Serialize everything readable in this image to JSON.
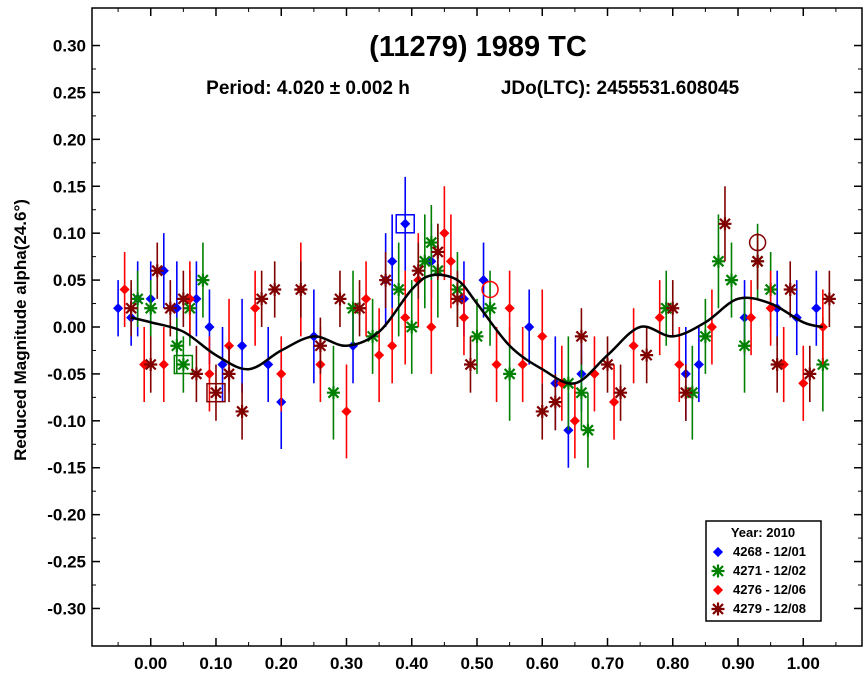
{
  "chart_data": {
    "type": "scatter",
    "title": "(11279) 1989 TC",
    "subtitle_period": "Period: 4.020 ± 0.002 h",
    "subtitle_epoch": "JDo(LTC): 2455531.608045",
    "ylabel": "Reduced Magnitude alpha(24.6°)",
    "xlabel": "",
    "xlim": [
      -0.09,
      1.09
    ],
    "ylim": [
      0.34,
      -0.34
    ],
    "y_inverted": true,
    "xticks": [
      0.0,
      0.1,
      0.2,
      0.3,
      0.4,
      0.5,
      0.6,
      0.7,
      0.8,
      0.9,
      1.0
    ],
    "xtick_labels": [
      "0.00",
      "0.10",
      "0.20",
      "0.30",
      "0.40",
      "0.50",
      "0.60",
      "0.70",
      "0.80",
      "0.90",
      "1.00"
    ],
    "yticks": [
      -0.3,
      -0.25,
      -0.2,
      -0.15,
      -0.1,
      -0.05,
      0.0,
      0.05,
      0.1,
      0.15,
      0.2,
      0.25,
      0.3
    ],
    "ytick_labels": [
      "-0.30",
      "-0.25",
      "-0.20",
      "-0.15",
      "-0.10",
      "-0.05",
      "0.00",
      "0.05",
      "0.10",
      "0.15",
      "0.20",
      "0.25",
      "0.30"
    ],
    "legend": {
      "title": "Year: 2010",
      "placement": "bottom-right",
      "entries": [
        {
          "label": "4268 - 12/01",
          "color": "#0000ff",
          "marker": "diamond"
        },
        {
          "label": "4271 - 12/02",
          "color": "#008000",
          "marker": "star"
        },
        {
          "label": "4276 - 12/06",
          "color": "#ff0000",
          "marker": "diamond"
        },
        {
          "label": "4279 - 12/08",
          "color": "#800000",
          "marker": "star"
        }
      ]
    },
    "fit_curve": {
      "color": "#000000",
      "x": [
        -0.03,
        0.0,
        0.05,
        0.1,
        0.15,
        0.2,
        0.25,
        0.3,
        0.35,
        0.4,
        0.43,
        0.47,
        0.5,
        0.55,
        0.6,
        0.65,
        0.7,
        0.75,
        0.8,
        0.85,
        0.9,
        0.95,
        1.0,
        1.03
      ],
      "y": [
        0.01,
        0.005,
        -0.005,
        -0.03,
        -0.045,
        -0.025,
        -0.01,
        -0.02,
        -0.005,
        0.04,
        0.055,
        0.05,
        0.025,
        -0.02,
        -0.045,
        -0.06,
        -0.03,
        0.0,
        -0.01,
        0.005,
        0.03,
        0.025,
        0.005,
        0.0
      ]
    },
    "series": [
      {
        "name": "4268 - 12/01",
        "color": "#0000ff",
        "marker": "diamond",
        "points": [
          [
            -0.05,
            0.02,
            0.03
          ],
          [
            -0.03,
            0.01,
            0.03
          ],
          [
            -0.02,
            0.03,
            0.04
          ],
          [
            0.0,
            0.03,
            0.04
          ],
          [
            0.02,
            0.06,
            0.04
          ],
          [
            0.04,
            0.02,
            0.05
          ],
          [
            0.07,
            0.03,
            0.04
          ],
          [
            0.09,
            0.0,
            0.04
          ],
          [
            0.11,
            -0.04,
            0.04
          ],
          [
            0.14,
            -0.02,
            0.05
          ],
          [
            0.18,
            -0.04,
            0.04
          ],
          [
            0.2,
            -0.08,
            0.05
          ],
          [
            0.25,
            -0.01,
            0.05
          ],
          [
            0.31,
            -0.02,
            0.04
          ],
          [
            0.36,
            0.05,
            0.05
          ],
          [
            0.37,
            0.07,
            0.05
          ],
          [
            0.39,
            0.11,
            0.05
          ],
          [
            0.43,
            0.07,
            0.04
          ],
          [
            0.48,
            0.03,
            0.04
          ],
          [
            0.51,
            0.05,
            0.04
          ],
          [
            0.58,
            0.0,
            0.04
          ],
          [
            0.62,
            -0.06,
            0.05
          ],
          [
            0.64,
            -0.11,
            0.04
          ],
          [
            0.66,
            -0.05,
            0.04
          ],
          [
            0.82,
            -0.05,
            0.05
          ],
          [
            0.84,
            -0.04,
            0.04
          ],
          [
            0.91,
            0.01,
            0.04
          ],
          [
            0.96,
            0.02,
            0.04
          ],
          [
            0.99,
            0.01,
            0.04
          ],
          [
            1.02,
            0.02,
            0.04
          ]
        ],
        "boxed": [
          [
            0.39,
            0.11
          ]
        ]
      },
      {
        "name": "4271 - 12/02",
        "color": "#008000",
        "marker": "star",
        "points": [
          [
            -0.02,
            0.03,
            0.03
          ],
          [
            0.0,
            0.02,
            0.03
          ],
          [
            0.04,
            -0.02,
            0.03
          ],
          [
            0.05,
            -0.04,
            0.03
          ],
          [
            0.06,
            0.02,
            0.04
          ],
          [
            0.08,
            0.05,
            0.04
          ],
          [
            0.28,
            -0.07,
            0.05
          ],
          [
            0.31,
            0.02,
            0.04
          ],
          [
            0.34,
            -0.01,
            0.04
          ],
          [
            0.38,
            0.04,
            0.05
          ],
          [
            0.4,
            0.0,
            0.05
          ],
          [
            0.42,
            0.07,
            0.05
          ],
          [
            0.43,
            0.09,
            0.04
          ],
          [
            0.44,
            0.06,
            0.05
          ],
          [
            0.47,
            0.04,
            0.04
          ],
          [
            0.5,
            -0.01,
            0.04
          ],
          [
            0.52,
            0.02,
            0.04
          ],
          [
            0.55,
            -0.05,
            0.05
          ],
          [
            0.64,
            -0.06,
            0.05
          ],
          [
            0.66,
            -0.07,
            0.04
          ],
          [
            0.67,
            -0.11,
            0.04
          ],
          [
            0.79,
            0.02,
            0.04
          ],
          [
            0.83,
            -0.07,
            0.05
          ],
          [
            0.85,
            -0.01,
            0.04
          ],
          [
            0.87,
            0.07,
            0.05
          ],
          [
            0.89,
            0.05,
            0.04
          ],
          [
            0.91,
            -0.02,
            0.05
          ],
          [
            0.93,
            0.07,
            0.04
          ],
          [
            0.95,
            0.04,
            0.04
          ],
          [
            1.03,
            -0.04,
            0.05
          ]
        ],
        "boxed": [
          [
            0.05,
            -0.04
          ]
        ]
      },
      {
        "name": "4276 - 12/06",
        "color": "#ff0000",
        "marker": "diamond",
        "points": [
          [
            -0.04,
            0.04,
            0.04
          ],
          [
            -0.01,
            -0.04,
            0.04
          ],
          [
            0.02,
            -0.04,
            0.04
          ],
          [
            0.06,
            0.03,
            0.04
          ],
          [
            0.09,
            -0.05,
            0.04
          ],
          [
            0.12,
            -0.02,
            0.05
          ],
          [
            0.16,
            0.02,
            0.04
          ],
          [
            0.2,
            -0.05,
            0.04
          ],
          [
            0.23,
            0.04,
            0.05
          ],
          [
            0.26,
            -0.04,
            0.04
          ],
          [
            0.3,
            -0.09,
            0.05
          ],
          [
            0.33,
            0.03,
            0.04
          ],
          [
            0.35,
            -0.03,
            0.05
          ],
          [
            0.37,
            -0.02,
            0.04
          ],
          [
            0.39,
            0.01,
            0.05
          ],
          [
            0.41,
            0.05,
            0.05
          ],
          [
            0.43,
            0.0,
            0.05
          ],
          [
            0.45,
            0.1,
            0.05
          ],
          [
            0.46,
            0.07,
            0.05
          ],
          [
            0.48,
            0.01,
            0.04
          ],
          [
            0.53,
            -0.04,
            0.04
          ],
          [
            0.55,
            0.02,
            0.04
          ],
          [
            0.57,
            -0.04,
            0.04
          ],
          [
            0.6,
            -0.01,
            0.05
          ],
          [
            0.63,
            -0.06,
            0.04
          ],
          [
            0.65,
            -0.1,
            0.04
          ],
          [
            0.68,
            -0.05,
            0.04
          ],
          [
            0.71,
            -0.08,
            0.04
          ],
          [
            0.74,
            -0.02,
            0.04
          ],
          [
            0.78,
            0.01,
            0.04
          ],
          [
            0.81,
            -0.04,
            0.04
          ],
          [
            0.86,
            0.0,
            0.04
          ],
          [
            0.92,
            0.01,
            0.04
          ],
          [
            0.95,
            0.02,
            0.04
          ],
          [
            0.97,
            -0.04,
            0.04
          ],
          [
            1.0,
            -0.06,
            0.04
          ],
          [
            1.03,
            0.0,
            0.04
          ]
        ],
        "circled": [
          [
            0.52,
            0.04
          ]
        ]
      },
      {
        "name": "4279 - 12/08",
        "color": "#800000",
        "marker": "star",
        "points": [
          [
            -0.03,
            0.02,
            0.03
          ],
          [
            0.0,
            -0.04,
            0.03
          ],
          [
            0.01,
            0.06,
            0.03
          ],
          [
            0.03,
            0.02,
            0.03
          ],
          [
            0.05,
            0.03,
            0.03
          ],
          [
            0.07,
            -0.05,
            0.03
          ],
          [
            0.1,
            -0.07,
            0.03
          ],
          [
            0.12,
            -0.05,
            0.03
          ],
          [
            0.14,
            -0.09,
            0.03
          ],
          [
            0.17,
            0.03,
            0.03
          ],
          [
            0.19,
            0.04,
            0.03
          ],
          [
            0.23,
            0.04,
            0.03
          ],
          [
            0.26,
            -0.02,
            0.03
          ],
          [
            0.29,
            0.03,
            0.03
          ],
          [
            0.32,
            0.02,
            0.03
          ],
          [
            0.36,
            0.05,
            0.03
          ],
          [
            0.41,
            0.06,
            0.03
          ],
          [
            0.44,
            0.08,
            0.03
          ],
          [
            0.47,
            0.03,
            0.03
          ],
          [
            0.49,
            -0.04,
            0.03
          ],
          [
            0.6,
            -0.09,
            0.03
          ],
          [
            0.62,
            -0.08,
            0.03
          ],
          [
            0.66,
            -0.01,
            0.03
          ],
          [
            0.7,
            -0.04,
            0.03
          ],
          [
            0.72,
            -0.07,
            0.03
          ],
          [
            0.76,
            -0.03,
            0.03
          ],
          [
            0.8,
            0.02,
            0.03
          ],
          [
            0.82,
            -0.07,
            0.03
          ],
          [
            0.88,
            0.11,
            0.04
          ],
          [
            0.93,
            0.07,
            0.03
          ],
          [
            0.96,
            -0.04,
            0.03
          ],
          [
            0.98,
            0.04,
            0.03
          ],
          [
            1.01,
            -0.05,
            0.03
          ],
          [
            1.04,
            0.03,
            0.03
          ]
        ],
        "boxed": [
          [
            0.1,
            -0.07
          ]
        ],
        "circled": [
          [
            0.93,
            0.09
          ]
        ]
      }
    ]
  }
}
